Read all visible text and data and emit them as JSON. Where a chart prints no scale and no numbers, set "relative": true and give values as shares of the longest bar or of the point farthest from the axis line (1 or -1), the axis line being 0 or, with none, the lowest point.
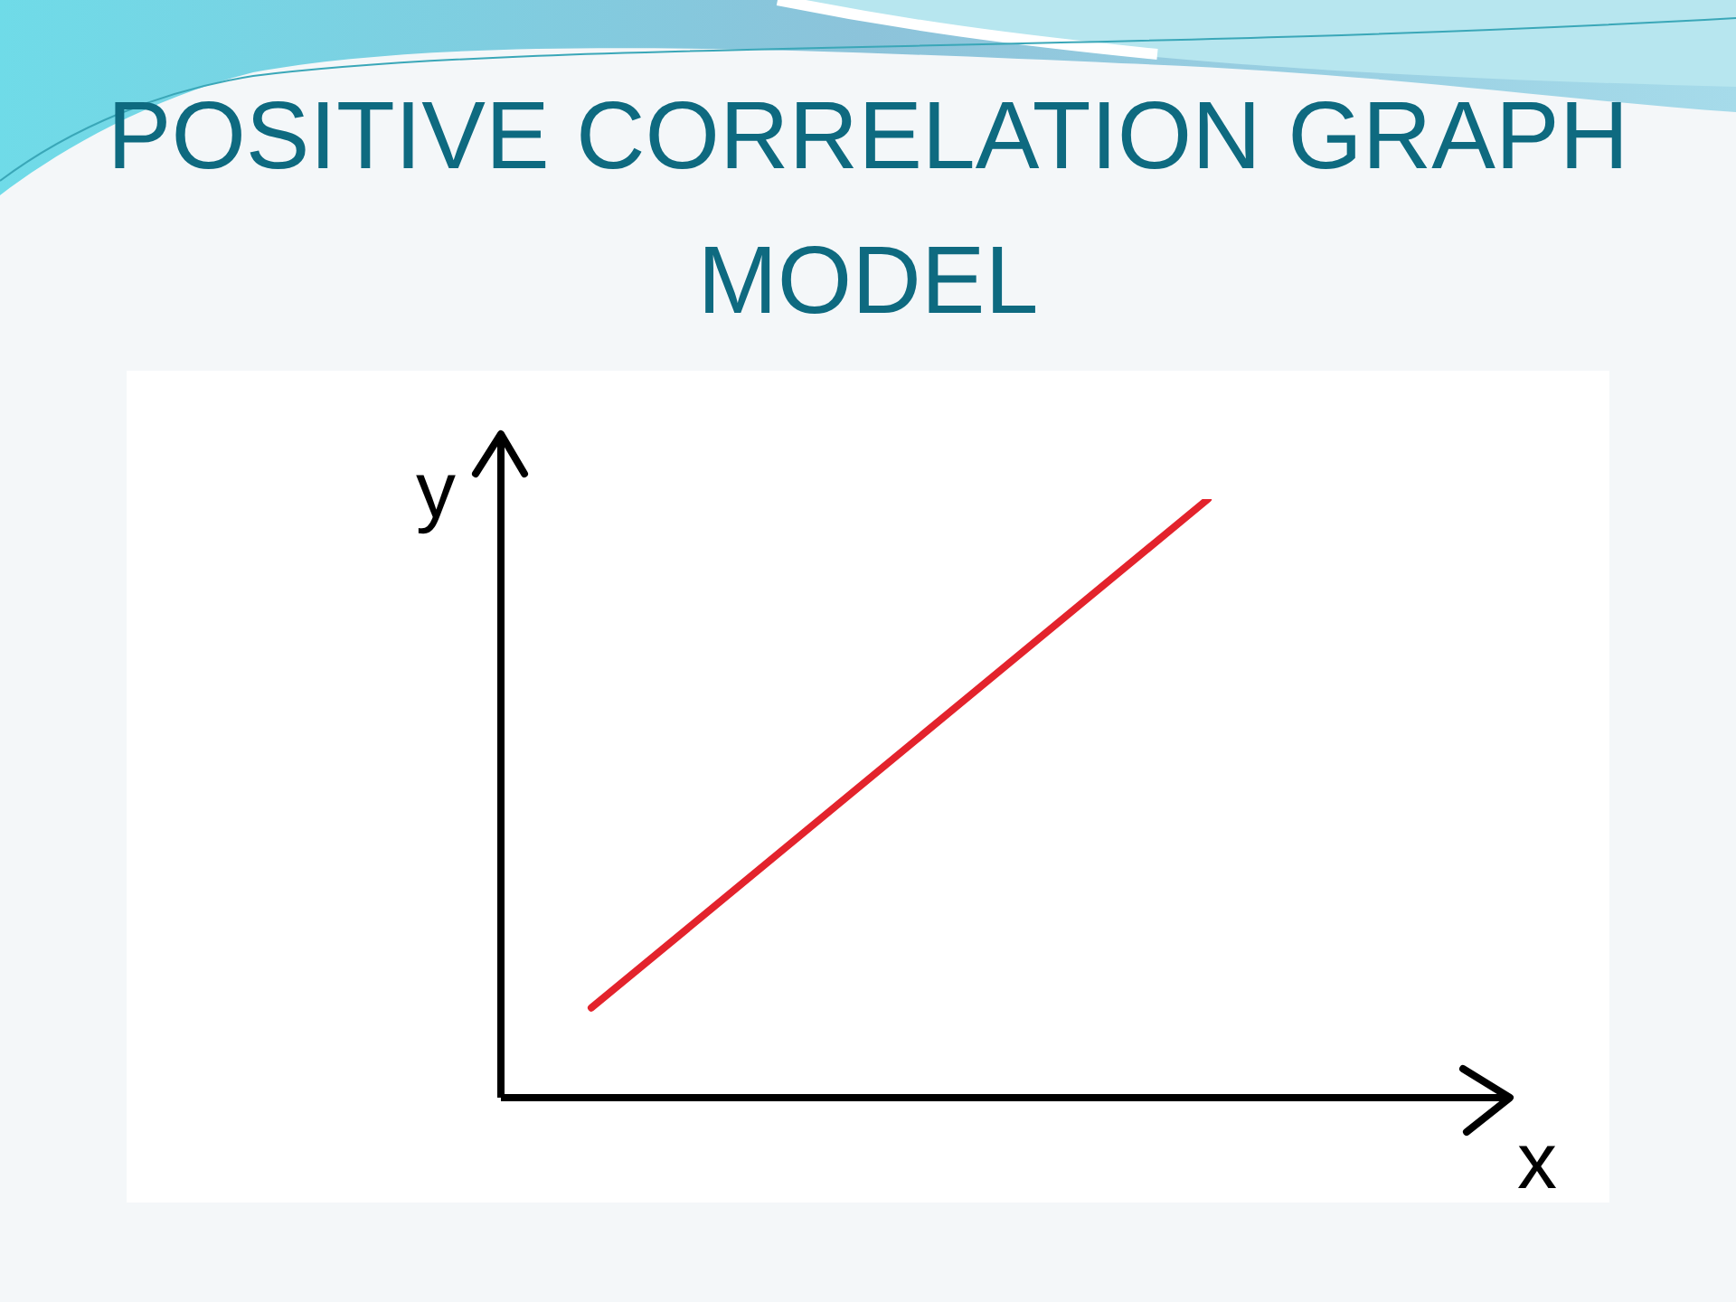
{
  "chart_data": {
    "type": "line",
    "title": "POSITIVE CORRELATION GRAPH MODEL",
    "xlabel": "x",
    "ylabel": "y",
    "categories": [
      null,
      null
    ],
    "series": [
      {
        "color": "#e3232c",
        "values": [
          0.15,
          1
        ]
      }
    ],
    "relative": true
  }
}
